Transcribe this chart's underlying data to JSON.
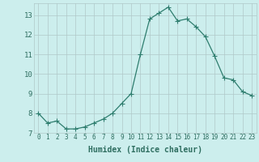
{
  "x": [
    0,
    1,
    2,
    3,
    4,
    5,
    6,
    7,
    8,
    9,
    10,
    11,
    12,
    13,
    14,
    15,
    16,
    17,
    18,
    19,
    20,
    21,
    22,
    23
  ],
  "y": [
    8.0,
    7.5,
    7.6,
    7.2,
    7.2,
    7.3,
    7.5,
    7.7,
    8.0,
    8.5,
    9.0,
    11.0,
    12.8,
    13.1,
    13.4,
    12.7,
    12.8,
    12.4,
    11.9,
    10.9,
    9.8,
    9.7,
    9.1,
    8.9
  ],
  "xlabel": "Humidex (Indice chaleur)",
  "ylim": [
    7,
    13.6
  ],
  "xlim_min": -0.5,
  "xlim_max": 23.5,
  "yticks": [
    7,
    8,
    9,
    10,
    11,
    12,
    13
  ],
  "xticks": [
    0,
    1,
    2,
    3,
    4,
    5,
    6,
    7,
    8,
    9,
    10,
    11,
    12,
    13,
    14,
    15,
    16,
    17,
    18,
    19,
    20,
    21,
    22,
    23
  ],
  "xtick_labels": [
    "0",
    "1",
    "2",
    "3",
    "4",
    "5",
    "6",
    "7",
    "8",
    "9",
    "10",
    "11",
    "12",
    "13",
    "14",
    "15",
    "16",
    "17",
    "18",
    "19",
    "20",
    "21",
    "22",
    "23"
  ],
  "line_color": "#2e7d6e",
  "marker_color": "#2e7d6e",
  "bg_color": "#cceeed",
  "grid_color": "#b0c8c8",
  "text_color": "#2e6e60",
  "font_size_label": 7,
  "font_size_tick_x": 5.5,
  "font_size_tick_y": 6.5,
  "line_width": 0.9,
  "marker_size": 2.2
}
